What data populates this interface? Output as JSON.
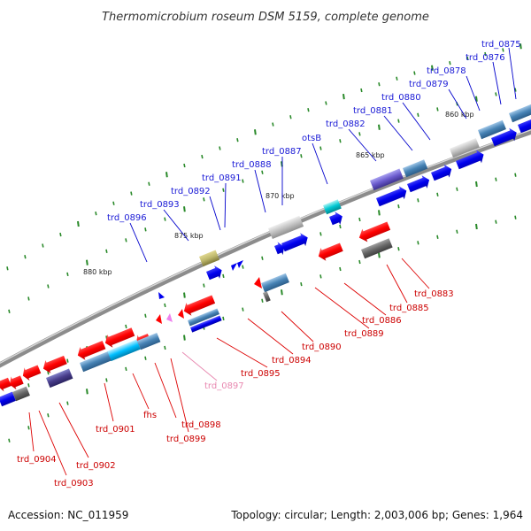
{
  "title": "Thermomicrobium roseum DSM 5159, complete genome",
  "footer": {
    "accession": "Accession: NC_011959",
    "topology": "Topology: circular; Length: 2,003,006 bp; Genes: 1,964"
  },
  "ruler": [
    "860 kbp",
    "865 kbp",
    "870 kbp",
    "875 kbp",
    "880 kbp"
  ],
  "forward_genes": [
    "trd_0875",
    "trd_0876",
    "trd_0878",
    "trd_0879",
    "trd_0880",
    "trd_0881",
    "trd_0882",
    "otsB",
    "trd_0887",
    "trd_0888",
    "trd_0891",
    "trd_0892",
    "trd_0893",
    "trd_0896"
  ],
  "reverse_genes": [
    "trd_0883",
    "trd_0885",
    "trd_0886",
    "trd_0889",
    "trd_0890",
    "trd_0894",
    "trd_0895",
    "trd_0897",
    "trd_0898",
    "trd_0899",
    "fhs",
    "trd_0901",
    "trd_0902",
    "trd_0903",
    "trd_0904"
  ],
  "colors": {
    "forward": "#1a1ad6",
    "reverse": "#cc0000",
    "pseudo": "#e888b0",
    "backbone": "#8c8c8c",
    "tick": "#2a8a2a"
  }
}
